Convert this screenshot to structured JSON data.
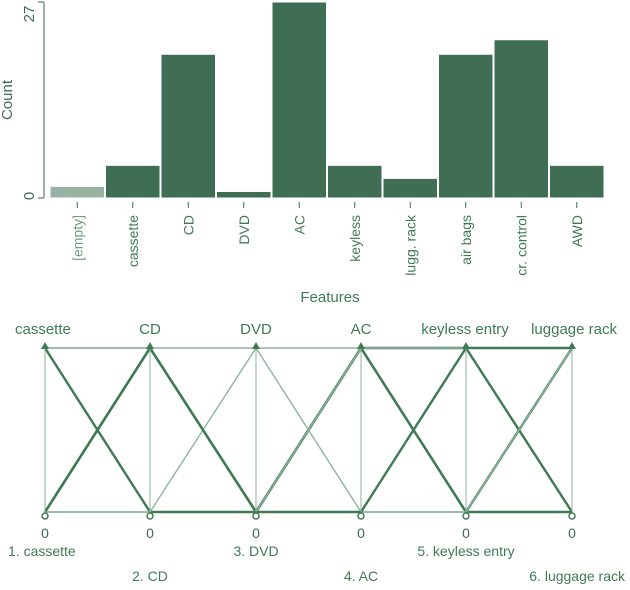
{
  "colors": {
    "bar": "#3f6e55",
    "bar_empty": "#98b3a3",
    "text": "#3f7a55",
    "axis": "#3a6a50",
    "line_dark": "#3f7a55",
    "line_light": "#8fb39e"
  },
  "chart_data": [
    {
      "type": "bar",
      "categories": [
        "[empty]",
        "cassette",
        "CD",
        "DVD",
        "AC",
        "keyless",
        "lugg. rack",
        "air bags",
        "cr. control",
        "AWD"
      ],
      "values": [
        1.6,
        4.5,
        19.8,
        0.9,
        27.0,
        4.5,
        2.7,
        19.8,
        21.8,
        4.5
      ],
      "xlabel": "Features",
      "ylabel": "Count",
      "y_ticks": [
        "0",
        "27"
      ],
      "ylim": [
        0,
        27
      ]
    },
    {
      "type": "parallel_coordinates",
      "axes": [
        "cassette",
        "CD",
        "DVD",
        "AC",
        "keyless entry",
        "luggage rack"
      ],
      "axis_min_labels": [
        "0",
        "0",
        "0",
        "0",
        "0",
        "0"
      ],
      "axis_footer_labels": [
        "1. cassette",
        "2. CD",
        "3. DVD",
        "4. AC",
        "5. keyless entry",
        "6. luggage rack"
      ],
      "lines": [
        {
          "values": [
            1,
            1,
            1,
            1,
            1,
            1
          ],
          "style": "light"
        },
        {
          "values": [
            0,
            0,
            0,
            0,
            0,
            0
          ],
          "style": "light"
        },
        {
          "values": [
            0,
            1,
            0,
            1,
            0,
            1
          ],
          "style": "dark"
        },
        {
          "values": [
            1,
            0,
            0,
            1,
            0,
            0
          ],
          "style": "dark"
        },
        {
          "values": [
            0,
            1,
            0,
            1,
            1,
            0
          ],
          "style": "dark"
        },
        {
          "values": [
            1,
            1,
            0,
            1,
            1,
            1
          ],
          "style": "light"
        },
        {
          "values": [
            0,
            0,
            1,
            0,
            0,
            1
          ],
          "style": "light"
        },
        {
          "values": [
            0,
            1,
            0,
            0,
            1,
            1
          ],
          "style": "dark"
        }
      ]
    }
  ]
}
